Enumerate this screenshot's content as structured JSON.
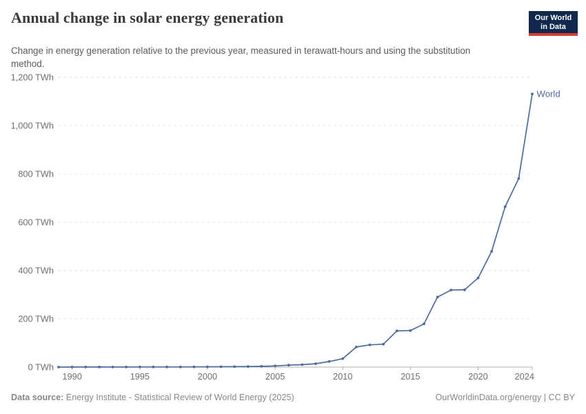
{
  "header": {
    "title": "Annual change in solar energy generation",
    "subtitle": "Change in energy generation relative to the previous year, measured in terawatt-hours and using the substitution method.",
    "logo": {
      "line1": "Our World",
      "line2": "in Data"
    }
  },
  "chart_data": {
    "type": "line",
    "title": "Annual change in solar energy generation",
    "unit": "TWh",
    "xlim": [
      1989,
      2024
    ],
    "ylim": [
      0,
      1200
    ],
    "grid": "horizontal-dashed",
    "legend_position": "end-of-line-label",
    "xticks": [
      {
        "value": 1990,
        "label": "1990"
      },
      {
        "value": 1995,
        "label": "1995"
      },
      {
        "value": 2000,
        "label": "2000"
      },
      {
        "value": 2005,
        "label": "2005"
      },
      {
        "value": 2010,
        "label": "2010"
      },
      {
        "value": 2015,
        "label": "2015"
      },
      {
        "value": 2020,
        "label": "2020"
      },
      {
        "value": 2024,
        "label": "2024"
      }
    ],
    "yticks": [
      {
        "value": 0,
        "label": "0 TWh"
      },
      {
        "value": 200,
        "label": "200 TWh"
      },
      {
        "value": 400,
        "label": "400 TWh"
      },
      {
        "value": 600,
        "label": "600 TWh"
      },
      {
        "value": 800,
        "label": "800 TWh"
      },
      {
        "value": 1000,
        "label": "1,000 TWh"
      },
      {
        "value": 1200,
        "label": "1,200 TWh"
      }
    ],
    "series": [
      {
        "name": "World",
        "color": "#4C6A9C",
        "x": [
          1989,
          1990,
          1991,
          1992,
          1993,
          1994,
          1995,
          1996,
          1997,
          1998,
          1999,
          2000,
          2001,
          2002,
          2003,
          2004,
          2005,
          2006,
          2007,
          2008,
          2009,
          2010,
          2011,
          2012,
          2013,
          2014,
          2015,
          2016,
          2017,
          2018,
          2019,
          2020,
          2021,
          2022,
          2023,
          2024
        ],
        "y": [
          0.1,
          0.2,
          0.2,
          0.3,
          0.3,
          0.4,
          0.5,
          0.5,
          0.6,
          0.7,
          0.9,
          1.1,
          1.4,
          1.8,
          2.2,
          3,
          5,
          8,
          10,
          14,
          23,
          35,
          83,
          92,
          95,
          150,
          151,
          179,
          290,
          319,
          320,
          369,
          479,
          664,
          781,
          1131
        ]
      }
    ]
  },
  "footer": {
    "source_label": "Data source:",
    "source_text": " Energy Institute - Statistical Review of World Energy (2025)",
    "rights": "OurWorldinData.org/energy | CC BY"
  },
  "colors": {
    "series": "#4C6A9C",
    "grid": "#e0e0e0",
    "axis": "#adadad",
    "tick_label": "#6e6e6e",
    "title": "#3a3a3a",
    "subtitle": "#5a5a5a",
    "footer": "#878787",
    "logo_bg": "#12294e",
    "logo_red": "#dc3d33"
  }
}
